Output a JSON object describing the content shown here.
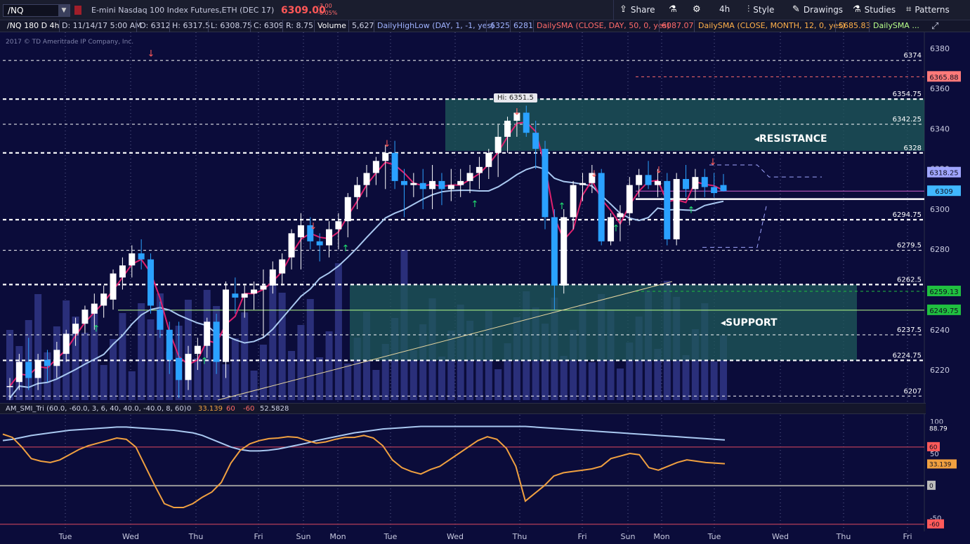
{
  "toolbar": {
    "symbol": "/NQ",
    "description": "E-mini Nasdaq 100 Index Futures,ETH (DEC 17)",
    "last_price": "6309.00",
    "change": "-3.00",
    "change_pct": "-0.05%",
    "share": "Share",
    "timeframe": "4h",
    "style": "Style",
    "drawings": "Drawings",
    "studies": "Studies",
    "patterns": "Patterns"
  },
  "infobar": {
    "symbol_period": "/NQ 180 D 4h",
    "date": "D: 11/14/17 5:00 AM",
    "open": "O: 6312",
    "high": "H: 6317.5",
    "low": "L: 6308.75",
    "close": "C: 6309",
    "range": "R: 8.75",
    "volume_label": "Volume",
    "volume_value": "5,627",
    "dhl_label": "DailyHighLow (DAY, 1, -1, yes)",
    "dhl_high": "6325",
    "dhl_low": "6281",
    "sma_day_label": "DailySMA (CLOSE, DAY, 50, 0, yes)",
    "sma_day_value": "6087.07",
    "sma_month_label": "DailySMA (CLOSE, MONTH, 12, 0, yes)",
    "sma_month_value": "5685.83",
    "sma_more": "DailySMA ..."
  },
  "watermark": "2017 © TD Ameritrade IP Company, Inc.",
  "annotations": {
    "hi_label": "Hi: 6351.5",
    "resistance": "RESISTANCE",
    "support": "SUPPORT"
  },
  "oscillator": {
    "name": "AM_SMI_Tri (60.0, -60.0, 3, 6, 40, 40.0, -40.0, 8, 60)",
    "v0": "0",
    "v1": "33.139",
    "v2": "60",
    "v3": "-60",
    "v4": "52.5828"
  },
  "colors": {
    "background": "#0b0c3a",
    "bull": "#ffffff",
    "bear": "#2aa1ff",
    "volume": "#2a2f7a",
    "sma_blue": "#a9c8f0",
    "magenta": "#e0206e",
    "resistance_zone": "#1f5a5a",
    "support_zone": "#1f5a5a",
    "osc_orange": "#f0a040",
    "osc_blue": "#a9c8f0"
  },
  "chart_data": {
    "type": "candlestick",
    "symbol": "/NQ",
    "interval": "4h",
    "ylim": [
      6205,
      6388
    ],
    "price_ticks": [
      6380,
      6360,
      6340,
      6320,
      6300,
      6280,
      6260,
      6240,
      6220
    ],
    "x_labels": [
      "Tue",
      "Wed",
      "Thu",
      "Fri",
      "Sun",
      "Mon",
      "Tue",
      "Wed",
      "Thu",
      "Fri",
      "Sun",
      "Mon",
      "Tue",
      "Wed",
      "Thu",
      "Fri"
    ],
    "candles": [
      [
        6212,
        6216,
        6205,
        6212
      ],
      [
        6214,
        6228,
        6210,
        6224
      ],
      [
        6224,
        6236,
        6210,
        6216
      ],
      [
        6216,
        6228,
        6210,
        6225
      ],
      [
        6225,
        6230,
        6214,
        6222
      ],
      [
        6222,
        6234,
        6216,
        6230
      ],
      [
        6228,
        6240,
        6224,
        6238
      ],
      [
        6238,
        6246,
        6232,
        6243
      ],
      [
        6243,
        6252,
        6238,
        6250
      ],
      [
        6248,
        6258,
        6240,
        6253
      ],
      [
        6252,
        6262,
        6246,
        6258
      ],
      [
        6255,
        6270,
        6250,
        6268
      ],
      [
        6266,
        6276,
        6260,
        6272
      ],
      [
        6272,
        6282,
        6266,
        6278
      ],
      [
        6278,
        6285,
        6270,
        6275
      ],
      [
        6275,
        6278,
        6248,
        6252
      ],
      [
        6250,
        6254,
        6236,
        6240
      ],
      [
        6240,
        6244,
        6218,
        6225
      ],
      [
        6226,
        6244,
        6206,
        6215
      ],
      [
        6215,
        6232,
        6210,
        6228
      ],
      [
        6228,
        6236,
        6220,
        6232
      ],
      [
        6232,
        6246,
        6226,
        6244
      ],
      [
        6244,
        6248,
        6218,
        6224
      ],
      [
        6224,
        6264,
        6216,
        6260
      ],
      [
        6258,
        6266,
        6248,
        6256
      ],
      [
        6256,
        6262,
        6246,
        6258
      ],
      [
        6258,
        6264,
        6250,
        6260
      ],
      [
        6260,
        6270,
        6236,
        6262
      ],
      [
        6262,
        6274,
        6258,
        6270
      ],
      [
        6268,
        6278,
        6262,
        6275
      ],
      [
        6276,
        6290,
        6270,
        6288
      ],
      [
        6286,
        6298,
        6270,
        6292
      ],
      [
        6292,
        6296,
        6280,
        6284
      ],
      [
        6284,
        6288,
        6274,
        6282
      ],
      [
        6282,
        6294,
        6276,
        6290
      ],
      [
        6290,
        6298,
        6280,
        6294
      ],
      [
        6294,
        6308,
        6286,
        6306
      ],
      [
        6306,
        6316,
        6300,
        6312
      ],
      [
        6312,
        6322,
        6306,
        6318
      ],
      [
        6318,
        6326,
        6312,
        6324
      ],
      [
        6324,
        6332,
        6310,
        6328
      ],
      [
        6328,
        6334,
        6310,
        6314
      ],
      [
        6314,
        6320,
        6296,
        6312
      ],
      [
        6312,
        6318,
        6306,
        6313
      ],
      [
        6313,
        6320,
        6300,
        6310
      ],
      [
        6310,
        6322,
        6300,
        6314
      ],
      [
        6314,
        6318,
        6302,
        6310
      ],
      [
        6310,
        6320,
        6304,
        6312
      ],
      [
        6312,
        6320,
        6306,
        6314
      ],
      [
        6314,
        6322,
        6308,
        6318
      ],
      [
        6318,
        6326,
        6310,
        6321
      ],
      [
        6321,
        6330,
        6315,
        6328
      ],
      [
        6328,
        6342,
        6316,
        6336
      ],
      [
        6336,
        6346,
        6328,
        6344
      ],
      [
        6344,
        6350,
        6336,
        6348
      ],
      [
        6348,
        6351.5,
        6336,
        6338
      ],
      [
        6338,
        6344,
        6320,
        6330
      ],
      [
        6330,
        6334,
        6290,
        6296
      ],
      [
        6296,
        6300,
        6250,
        6262
      ],
      [
        6262,
        6300,
        6258,
        6296
      ],
      [
        6296,
        6314,
        6290,
        6312
      ],
      [
        6312,
        6318,
        6304,
        6313
      ],
      [
        6313,
        6322,
        6308,
        6318
      ],
      [
        6318,
        6320,
        6282,
        6284
      ],
      [
        6284,
        6298,
        6282,
        6296
      ],
      [
        6296,
        6302,
        6284,
        6298
      ],
      [
        6298,
        6316,
        6292,
        6312
      ],
      [
        6312,
        6320,
        6306,
        6317
      ],
      [
        6317,
        6324,
        6310,
        6312
      ],
      [
        6312,
        6320,
        6306,
        6314
      ],
      [
        6314,
        6318,
        6282,
        6285
      ],
      [
        6285,
        6318,
        6282,
        6315
      ],
      [
        6315,
        6322,
        6306,
        6310
      ],
      [
        6310,
        6320,
        6304,
        6316
      ],
      [
        6316,
        6320,
        6306,
        6311
      ],
      [
        6311,
        6318,
        6306,
        6308
      ],
      [
        6312,
        6317.5,
        6308.75,
        6309
      ]
    ],
    "horizontal_levels": [
      6374,
      6354.75,
      6342.25,
      6328,
      6294.75,
      6279.5,
      6262.5,
      6237.5,
      6224.75,
      6207
    ],
    "right_axis_tags": [
      {
        "value": 6365.88,
        "label": "6365.88",
        "color": "#ff7a7a"
      },
      {
        "value": 6318.25,
        "label": "6318.25",
        "color": "#a0a6ff"
      },
      {
        "value": 6309,
        "label": "6309",
        "color": "#40b8ff"
      },
      {
        "value": 6259.13,
        "label": "6259.13",
        "color": "#20c040"
      },
      {
        "value": 6249.75,
        "label": "6249.75",
        "color": "#20c040"
      }
    ],
    "resistance_zone": [
      6329,
      6355
    ],
    "support_zone": [
      6224.75,
      6262.5
    ],
    "oscillator": {
      "ylim": [
        -70,
        110
      ],
      "ticks": [
        100,
        50,
        0,
        -50
      ],
      "levels": [
        60,
        0,
        -60
      ],
      "tags": [
        {
          "value": 88.79,
          "label": "88.79"
        },
        {
          "value": 60,
          "label": "60"
        },
        {
          "value": 33.139,
          "label": "33.139"
        },
        {
          "value": 0,
          "label": "0"
        },
        {
          "value": -60,
          "label": "-60"
        }
      ],
      "blue_series": [
        70,
        72,
        75,
        78,
        80,
        82,
        84,
        86,
        87,
        88,
        89,
        90,
        91,
        91,
        90,
        89,
        88,
        87,
        86,
        84,
        82,
        78,
        72,
        66,
        60,
        56,
        54,
        54,
        55,
        57,
        60,
        63,
        66,
        70,
        73,
        76,
        79,
        82,
        84,
        86,
        88,
        89,
        90,
        91,
        92,
        92,
        92,
        92,
        92,
        92,
        92,
        92,
        92,
        92,
        92,
        92,
        91,
        90,
        89,
        88,
        87,
        86,
        85,
        84,
        83,
        82,
        81,
        80,
        79,
        78,
        77,
        76,
        75,
        74,
        73,
        72,
        71
      ],
      "orange_series": [
        80,
        75,
        60,
        42,
        38,
        36,
        40,
        48,
        56,
        62,
        66,
        70,
        74,
        72,
        60,
        30,
        0,
        -28,
        -34,
        -34,
        -28,
        -18,
        -10,
        5,
        35,
        55,
        65,
        70,
        73,
        74,
        76,
        75,
        70,
        66,
        68,
        72,
        75,
        75,
        78,
        74,
        62,
        40,
        28,
        22,
        18,
        25,
        30,
        40,
        50,
        60,
        70,
        76,
        72,
        58,
        30,
        -24,
        -12,
        0,
        15,
        20,
        22,
        24,
        26,
        30,
        42,
        46,
        50,
        48,
        28,
        24,
        30,
        36,
        40,
        38,
        36,
        35,
        34
      ]
    }
  }
}
